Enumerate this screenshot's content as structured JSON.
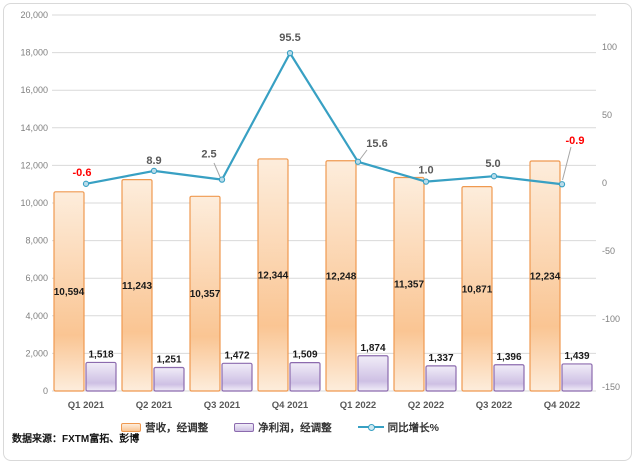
{
  "chart_data": {
    "type": "combo",
    "categories": [
      "Q1 2021",
      "Q2 2021",
      "Q3 2021",
      "Q4 2021",
      "Q1 2022",
      "Q2 2022",
      "Q3 2022",
      "Q4 2022"
    ],
    "series": [
      {
        "name": "营收，经调整",
        "type": "bar",
        "axis": "left",
        "values": [
          10594,
          11243,
          10357,
          12344,
          12248,
          11357,
          10871,
          12234
        ],
        "fill_top": "#fdeddc",
        "fill_bottom": "#fac593",
        "border": "#ef9950"
      },
      {
        "name": "净利润，经调整",
        "type": "bar",
        "axis": "left",
        "values": [
          1518,
          1251,
          1472,
          1509,
          1874,
          1337,
          1396,
          1439
        ],
        "fill_top": "#f1edf8",
        "fill_bottom": "#cec0e4",
        "border": "#8c6bae"
      },
      {
        "name": "同比增长%",
        "type": "line",
        "axis": "right",
        "values": [
          -0.6,
          8.9,
          2.5,
          95.5,
          15.6,
          1.0,
          5.0,
          -0.9
        ],
        "color": "#38a0c3",
        "marker_fill": "#b9dcea",
        "label_color": "#595959",
        "negative_label_color": "#ff0000"
      }
    ],
    "left_axis": {
      "min": 0,
      "max": 20000,
      "step": 2000
    },
    "right_axis": {
      "ticks": [
        100,
        50,
        0,
        -50,
        -100,
        -150
      ]
    },
    "grid": true,
    "gridline_color": "#d9d9d9",
    "axis_label_color": "#808080",
    "category_label_color": "#595959",
    "bar_label_color": "#1a1a1a",
    "legend_position": "bottom"
  },
  "source_note": "数据来源：FXTM富拓、彭博"
}
